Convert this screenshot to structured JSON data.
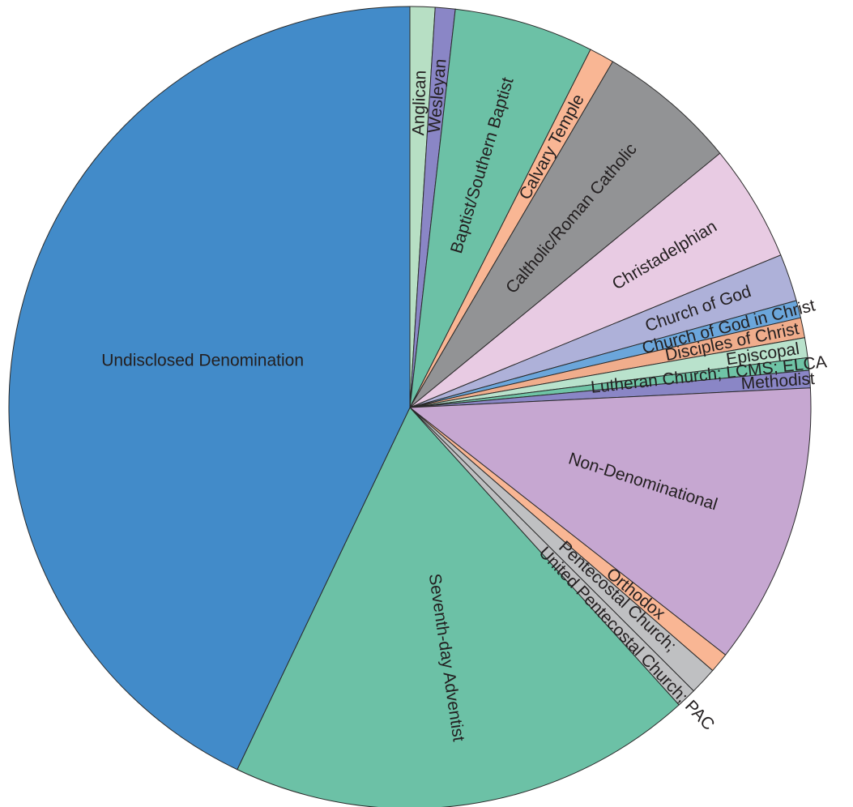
{
  "chart_data": {
    "type": "pie",
    "title": "",
    "slices": [
      {
        "label": "Anglican",
        "value": 1.0,
        "color": "#b7dfc4"
      },
      {
        "label": "Wesleyan",
        "value": 0.8,
        "color": "#8a86c6"
      },
      {
        "label": "Baptist/Southern Baptist",
        "value": 5.6,
        "color": "#6cc1a6"
      },
      {
        "label": "Calvary Temple",
        "value": 1.0,
        "color": "#f9b694"
      },
      {
        "label": "Caltholic/Roman Catholic",
        "value": 5.6,
        "color": "#929395"
      },
      {
        "label": "Christadelphian",
        "value": 4.7,
        "color": "#e8cbe3"
      },
      {
        "label": "Church of God",
        "value": 1.9,
        "color": "#aeb1d9"
      },
      {
        "label": "Church of God in Christ",
        "value": 0.7,
        "color": "#6ba6db"
      },
      {
        "label": "Disciples of Christ",
        "value": 0.8,
        "color": "#f0ad8c"
      },
      {
        "label": "Episcopal",
        "value": 0.8,
        "color": "#b9e2cc"
      },
      {
        "label": "Lutheran Church; LCMS; ELCA",
        "value": 0.5,
        "color": "#6fc4a6"
      },
      {
        "label": "Methodist",
        "value": 0.7,
        "color": "#8a86c6"
      },
      {
        "label": "Non-Denominational",
        "value": 11.3,
        "color": "#c6a7d1"
      },
      {
        "label": "Orthodox",
        "value": 0.8,
        "color": "#f9b694"
      },
      {
        "label": "Pentecostal Church;",
        "value": 1.1,
        "color": "#bfc0c2"
      },
      {
        "label": "United Pentecostal Church; PAC",
        "value": 0.8,
        "color": "#bfc0c2"
      },
      {
        "label": "Seventh-day Adventist",
        "value": 18.7,
        "color": "#6cc1a6"
      },
      {
        "label": "Undisclosed Denomination",
        "value": 42.7,
        "color": "#428bc9"
      }
    ]
  }
}
